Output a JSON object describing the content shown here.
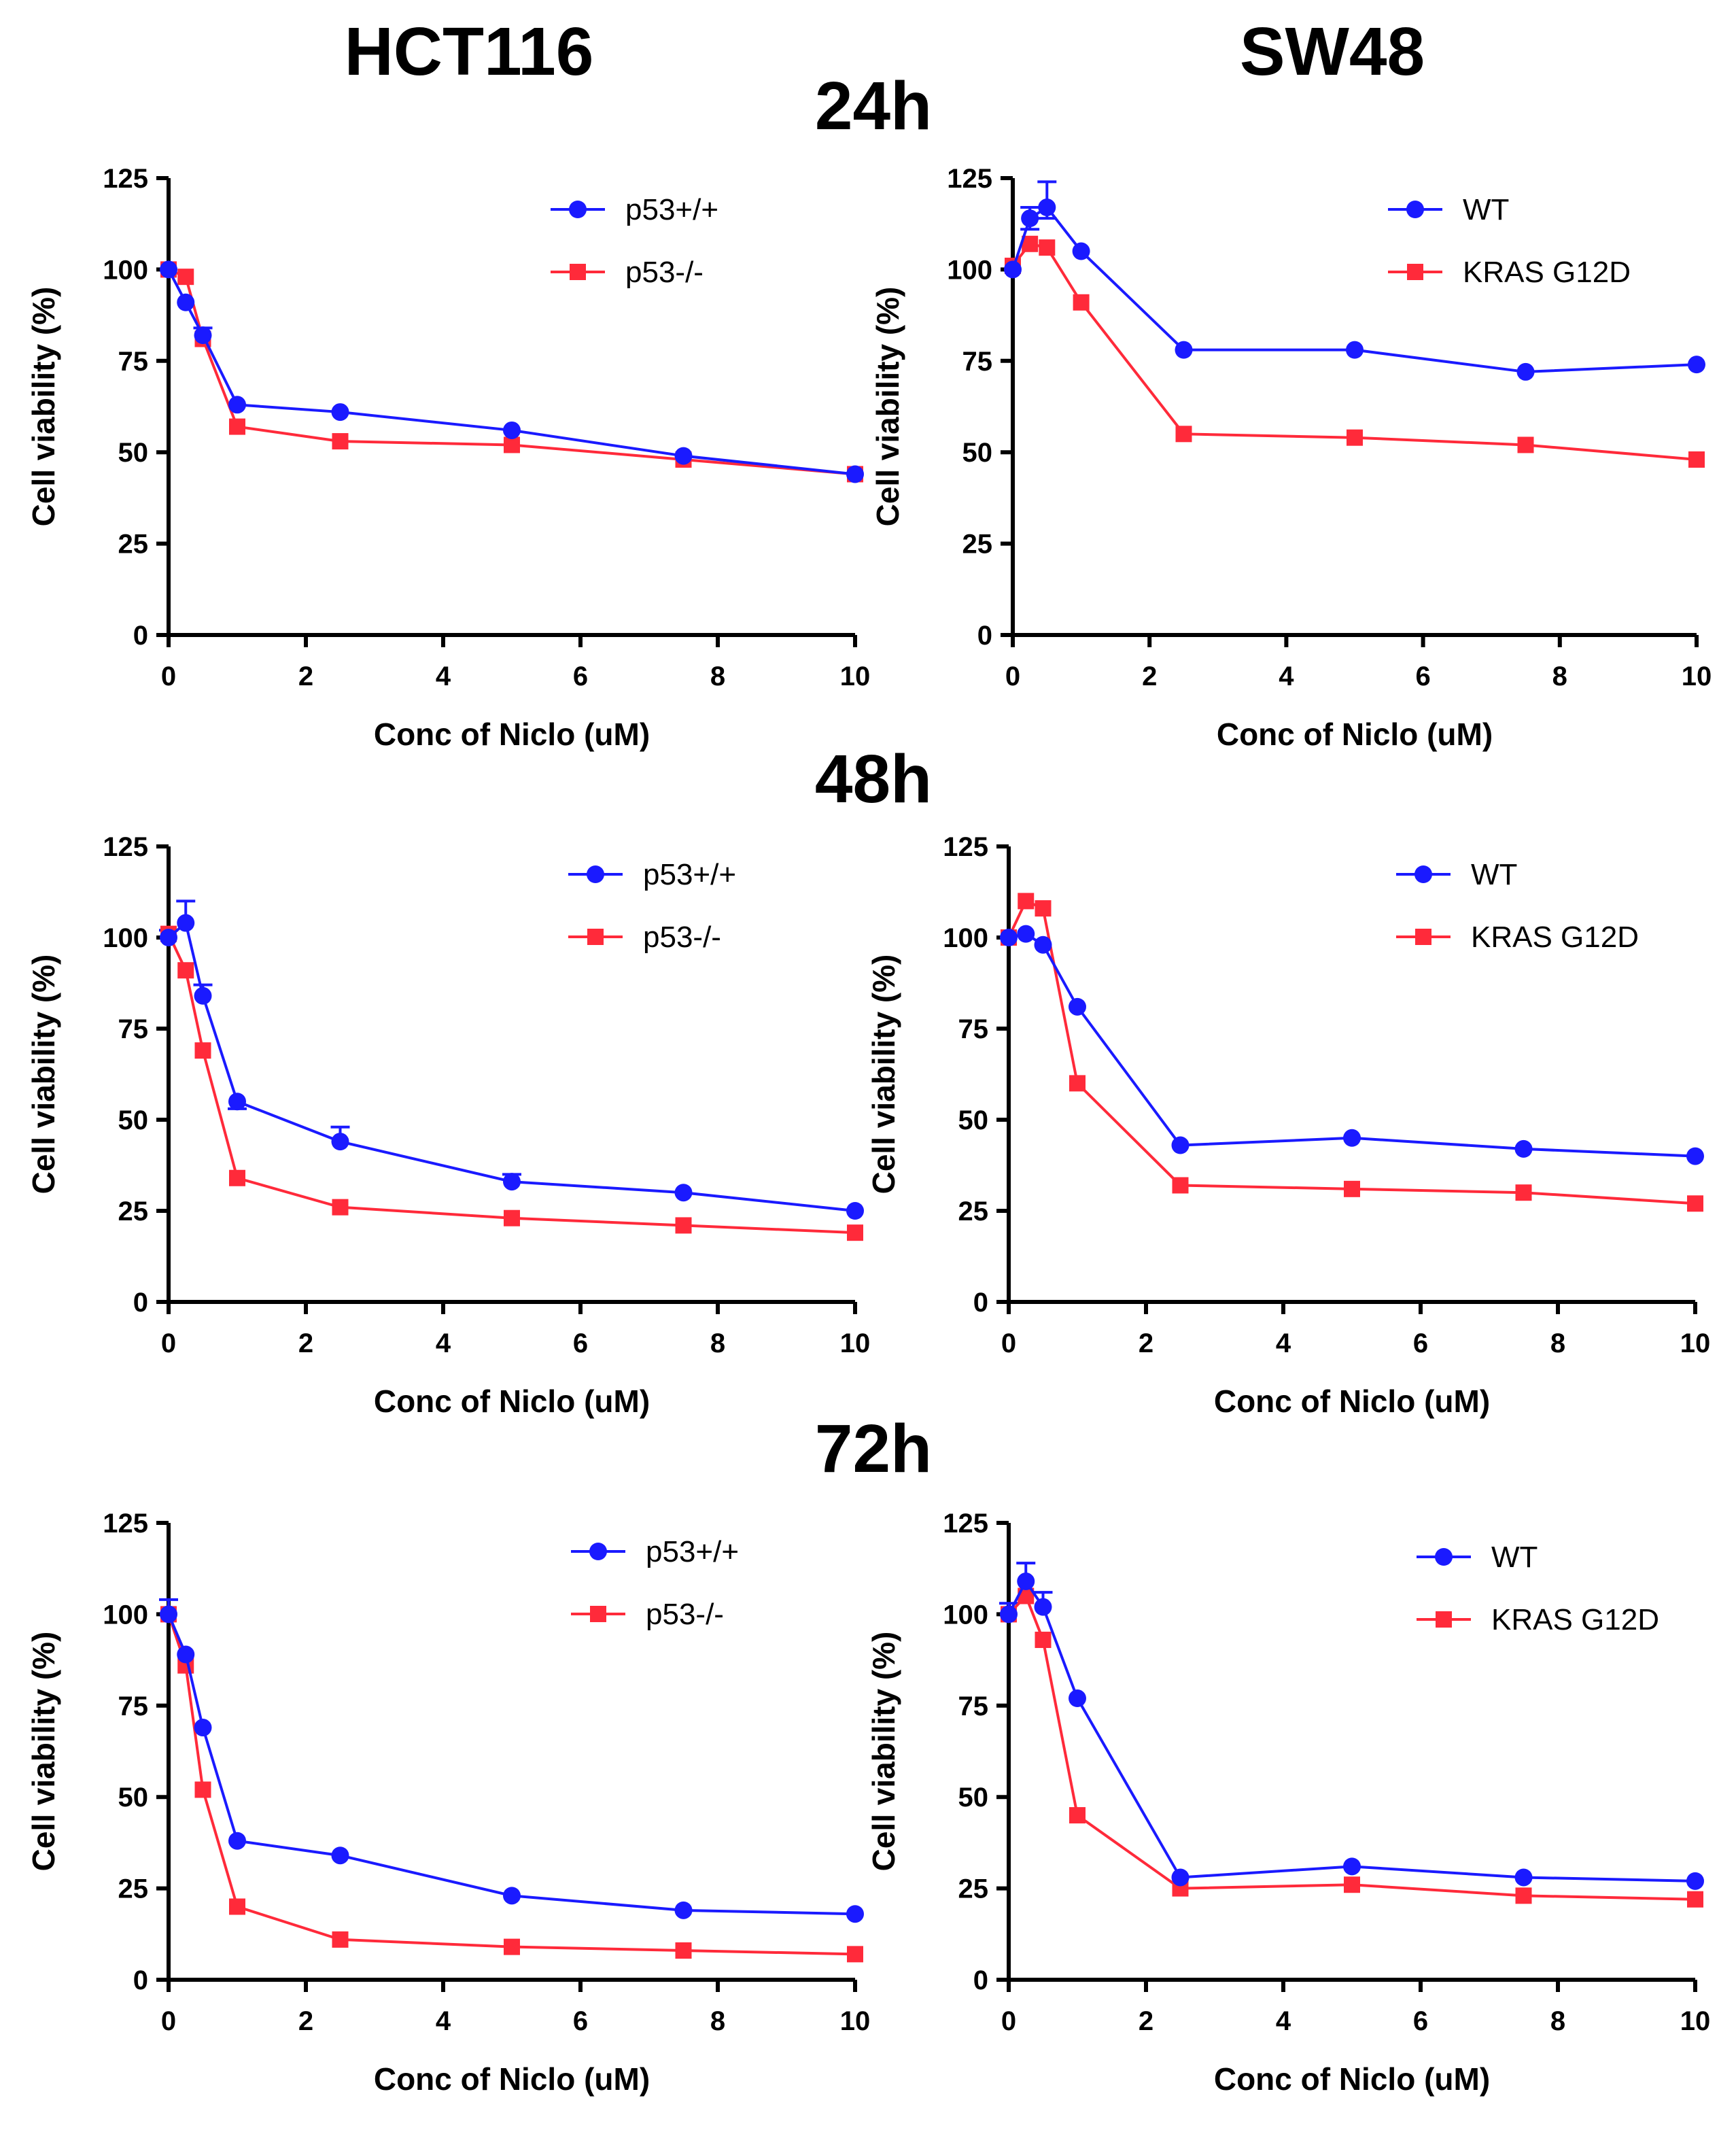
{
  "figure": {
    "columns": [
      "HCT116",
      "SW48"
    ],
    "rows": [
      "24h",
      "48h",
      "72h"
    ]
  },
  "colors": {
    "blue": "#1a1aff",
    "red": "#ff2a3a",
    "axis": "#000000"
  },
  "chart_data": [
    {
      "type": "line",
      "panel": "HCT116 24h",
      "x": [
        0,
        0.25,
        0.5,
        1,
        2.5,
        5,
        7.5,
        10
      ],
      "series": [
        {
          "name": "p53+/+",
          "color": "blue",
          "marker": "circle",
          "values": [
            100,
            91,
            82,
            63,
            61,
            56,
            49,
            44
          ]
        },
        {
          "name": "p53-/-",
          "color": "red",
          "marker": "square",
          "values": [
            100,
            98,
            81,
            57,
            53,
            52,
            48,
            44
          ]
        }
      ],
      "errors": [
        [
          0,
          0
        ],
        [
          0,
          0
        ],
        [
          2,
          0
        ],
        [
          0,
          0
        ],
        [
          0,
          0
        ],
        [
          0,
          0
        ],
        [
          0,
          0
        ],
        [
          0,
          0
        ]
      ],
      "xlabel": "Conc of Niclo (uM)",
      "ylabel": "Cell viability (%)",
      "xlim": [
        0,
        10
      ],
      "ylim": [
        0,
        125
      ],
      "xticks": [
        0,
        2,
        4,
        6,
        8,
        10
      ],
      "yticks": [
        0,
        25,
        50,
        75,
        100,
        125
      ],
      "legend": "top-right"
    },
    {
      "type": "line",
      "panel": "SW48 24h",
      "x": [
        0,
        0.25,
        0.5,
        1,
        2.5,
        5,
        7.5,
        10
      ],
      "series": [
        {
          "name": "WT",
          "color": "blue",
          "marker": "circle",
          "values": [
            100,
            114,
            117,
            105,
            78,
            78,
            72,
            74
          ]
        },
        {
          "name": "KRAS G12D",
          "color": "red",
          "marker": "square",
          "values": [
            101,
            107,
            106,
            91,
            55,
            54,
            52,
            48
          ]
        }
      ],
      "errors": [
        [
          0,
          0
        ],
        [
          3,
          3
        ],
        [
          7,
          3
        ],
        [
          0,
          0
        ],
        [
          0,
          0
        ],
        [
          0,
          0
        ],
        [
          0,
          0
        ],
        [
          0,
          0
        ]
      ],
      "xlabel": "Conc of Niclo (uM)",
      "ylabel": "Cell viability (%)",
      "xlim": [
        0,
        10
      ],
      "ylim": [
        0,
        125
      ],
      "xticks": [
        0,
        2,
        4,
        6,
        8,
        10
      ],
      "yticks": [
        0,
        25,
        50,
        75,
        100,
        125
      ],
      "legend": "top-right"
    },
    {
      "type": "line",
      "panel": "HCT116 48h",
      "x": [
        0,
        0.25,
        0.5,
        1,
        2.5,
        5,
        7.5,
        10
      ],
      "series": [
        {
          "name": "p53+/+",
          "color": "blue",
          "marker": "circle",
          "values": [
            100,
            104,
            84,
            55,
            44,
            33,
            30,
            25
          ]
        },
        {
          "name": "p53-/-",
          "color": "red",
          "marker": "square",
          "values": [
            101,
            91,
            69,
            34,
            26,
            23,
            21,
            19
          ]
        }
      ],
      "errors": [
        [
          2,
          0
        ],
        [
          6,
          0
        ],
        [
          3,
          0
        ],
        [
          0,
          2
        ],
        [
          4,
          0
        ],
        [
          2,
          0
        ],
        [
          0,
          0
        ],
        [
          0,
          0
        ]
      ],
      "xlabel": "Conc of Niclo (uM)",
      "ylabel": "Cell viability (%)",
      "xlim": [
        0,
        10
      ],
      "ylim": [
        0,
        125
      ],
      "xticks": [
        0,
        2,
        4,
        6,
        8,
        10
      ],
      "yticks": [
        0,
        25,
        50,
        75,
        100,
        125
      ],
      "legend": "top-right"
    },
    {
      "type": "line",
      "panel": "SW48 48h",
      "x": [
        0,
        0.25,
        0.5,
        1,
        2.5,
        5,
        7.5,
        10
      ],
      "series": [
        {
          "name": "WT",
          "color": "blue",
          "marker": "circle",
          "values": [
            100,
            101,
            98,
            81,
            43,
            45,
            42,
            40
          ]
        },
        {
          "name": "KRAS G12D",
          "color": "red",
          "marker": "square",
          "values": [
            100,
            110,
            108,
            60,
            32,
            31,
            30,
            27
          ]
        }
      ],
      "errors": [
        [
          0,
          0
        ],
        [
          0,
          0
        ],
        [
          0,
          0
        ],
        [
          0,
          0
        ],
        [
          0,
          0
        ],
        [
          0,
          0
        ],
        [
          0,
          0
        ],
        [
          0,
          0
        ]
      ],
      "xlabel": "Conc of Niclo (uM)",
      "ylabel": "Cell viability (%)",
      "xlim": [
        0,
        10
      ],
      "ylim": [
        0,
        125
      ],
      "xticks": [
        0,
        2,
        4,
        6,
        8,
        10
      ],
      "yticks": [
        0,
        25,
        50,
        75,
        100,
        125
      ],
      "legend": "top-right"
    },
    {
      "type": "line",
      "panel": "HCT116 72h",
      "x": [
        0,
        0.25,
        0.5,
        1,
        2.5,
        5,
        7.5,
        10
      ],
      "series": [
        {
          "name": "p53+/+",
          "color": "blue",
          "marker": "circle",
          "values": [
            100,
            89,
            69,
            38,
            34,
            23,
            19,
            18
          ]
        },
        {
          "name": "p53-/-",
          "color": "red",
          "marker": "square",
          "values": [
            100,
            86,
            52,
            20,
            11,
            9,
            8,
            7
          ]
        }
      ],
      "errors": [
        [
          4,
          0
        ],
        [
          0,
          0
        ],
        [
          0,
          0
        ],
        [
          0,
          0
        ],
        [
          0,
          0
        ],
        [
          0,
          0
        ],
        [
          0,
          0
        ],
        [
          0,
          0
        ]
      ],
      "xlabel": "Conc of Niclo (uM)",
      "ylabel": "Cell viability (%)",
      "xlim": [
        0,
        10
      ],
      "ylim": [
        0,
        125
      ],
      "xticks": [
        0,
        2,
        4,
        6,
        8,
        10
      ],
      "yticks": [
        0,
        25,
        50,
        75,
        100,
        125
      ],
      "legend": "top-right"
    },
    {
      "type": "line",
      "panel": "SW48 72h",
      "x": [
        0,
        0.25,
        0.5,
        1,
        2.5,
        5,
        7.5,
        10
      ],
      "series": [
        {
          "name": "WT",
          "color": "blue",
          "marker": "circle",
          "values": [
            100,
            109,
            102,
            77,
            28,
            31,
            28,
            27
          ]
        },
        {
          "name": "KRAS G12D",
          "color": "red",
          "marker": "square",
          "values": [
            100,
            105,
            93,
            45,
            25,
            26,
            23,
            22
          ]
        }
      ],
      "errors": [
        [
          3,
          0
        ],
        [
          5,
          0
        ],
        [
          4,
          0
        ],
        [
          0,
          0
        ],
        [
          0,
          0
        ],
        [
          0,
          0
        ],
        [
          0,
          0
        ],
        [
          0,
          0
        ]
      ],
      "xlabel": "Conc of Niclo (uM)",
      "ylabel": "Cell viability (%)",
      "xlim": [
        0,
        10
      ],
      "ylim": [
        0,
        125
      ],
      "xticks": [
        0,
        2,
        4,
        6,
        8,
        10
      ],
      "yticks": [
        0,
        25,
        50,
        75,
        100,
        125
      ],
      "legend": "top-right"
    }
  ]
}
